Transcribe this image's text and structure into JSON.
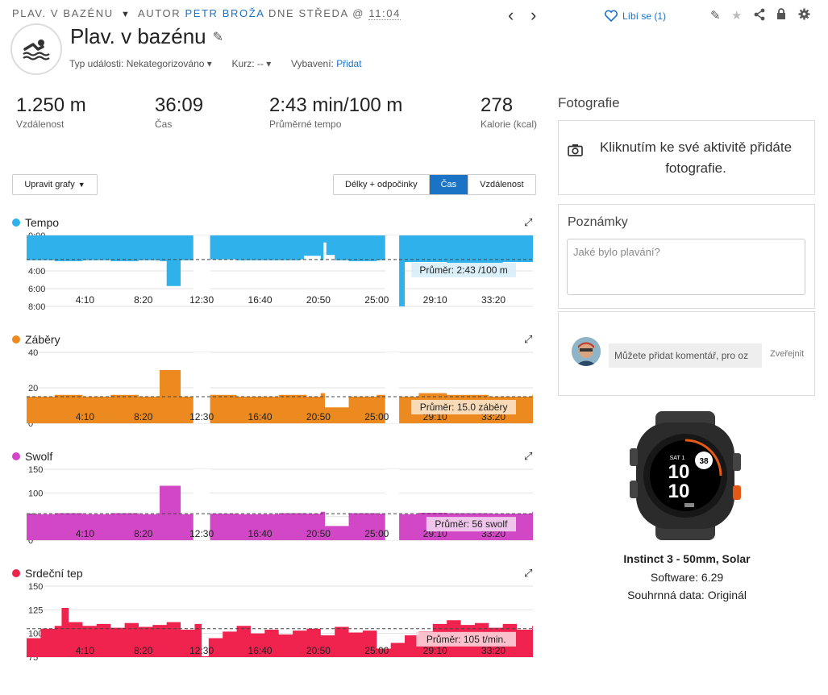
{
  "header": {
    "breadcrumb_activity": "PLAV. V BAZÉNU",
    "breadcrumb_author_prefix": "AUTOR",
    "breadcrumb_author": "PETR BROŽA",
    "breadcrumb_day": "DNE STŘEDA @",
    "breadcrumb_time": "11:04",
    "like_label": "Líbí se (1)",
    "title": "Plav. v bazénu",
    "event_type_label": "Typ události:",
    "event_type_value": "Nekategorizováno",
    "course_label": "Kurz:",
    "course_value": "--",
    "gear_label": "Vybavení:",
    "gear_link": "Přidat"
  },
  "stats": [
    {
      "value": "1.250 m",
      "label": "Vzdálenost"
    },
    {
      "value": "36:09",
      "label": "Čas"
    },
    {
      "value": "2:43 min/100 m",
      "label": "Průměrné tempo"
    },
    {
      "value": "278",
      "label": "Kalorie (kcal)"
    }
  ],
  "controls": {
    "edit_charts": "Upravit grafy",
    "segments": [
      "Délky + odpočinky",
      "Čas",
      "Vzdálenost"
    ],
    "active_segment": "Čas"
  },
  "colors": {
    "tempo": "#2fb2ec",
    "strokes": "#ec8a1f",
    "swolf": "#d147c5",
    "hr": "#f0234e",
    "accent": "#1a73c5"
  },
  "charts": {
    "x_ticks": [
      "4:10",
      "8:20",
      "12:30",
      "16:40",
      "20:50",
      "25:00",
      "29:10",
      "33:20"
    ],
    "tempo": {
      "title": "Tempo",
      "y_ticks": [
        "0:00",
        "2:00",
        "4:00",
        "6:00",
        "8:00"
      ],
      "avg_label": "Průměr: 2:43 /100 m"
    },
    "strokes": {
      "title": "Záběry",
      "y_ticks": [
        "40",
        "20",
        "0"
      ],
      "avg_label": "Průměr: 15.0 záběry"
    },
    "swolf": {
      "title": "Swolf",
      "y_ticks": [
        "150",
        "100",
        "50",
        "0"
      ],
      "avg_label": "Průměr: 56 swolf"
    },
    "hr": {
      "title": "Srdeční tep",
      "y_ticks": [
        "150",
        "125",
        "100",
        "75"
      ],
      "avg_label": "Průměr: 105 t/min."
    }
  },
  "chart_data": [
    {
      "type": "area",
      "title": "Tempo",
      "x_unit": "min",
      "x": [
        0,
        2,
        4,
        6,
        8,
        9.5,
        10,
        11,
        12.3,
        12.6,
        13,
        15,
        18,
        19.5,
        19.8,
        21,
        21.2,
        21.4,
        22,
        23,
        25,
        26.4,
        27,
        30,
        34,
        36.1
      ],
      "y": [
        2.8,
        2.9,
        2.8,
        2.9,
        2.8,
        2.9,
        5.7,
        2.8,
        2.9,
        8.0,
        2.7,
        2.8,
        2.8,
        2.7,
        2.3,
        2.8,
        0.8,
        2.2,
        2.8,
        2.9,
        2.8,
        8.0,
        3.0,
        3.1,
        3.0,
        3.0
      ],
      "gaps": [
        [
          11.9,
          13.1
        ],
        [
          25.6,
          26.6
        ]
      ],
      "average": 2.72,
      "ylim": [
        0,
        8
      ],
      "y_inverted": true
    },
    {
      "type": "area",
      "title": "Záběry",
      "x_unit": "min",
      "x": [
        0,
        2,
        4,
        6,
        8,
        9.5,
        11,
        13,
        15,
        18,
        20,
        21,
        21.3,
        23,
        25,
        26.4,
        28,
        30,
        33,
        36.1
      ],
      "y": [
        15,
        16,
        15,
        16,
        15,
        30,
        15,
        16,
        15,
        16,
        15,
        17,
        9,
        15,
        16,
        15,
        17,
        16,
        15,
        16
      ],
      "gaps": [
        [
          11.9,
          13.1
        ],
        [
          25.6,
          26.6
        ]
      ],
      "average": 15.0,
      "ylim": [
        0,
        40
      ]
    },
    {
      "type": "area",
      "title": "Swolf",
      "x_unit": "min",
      "x": [
        0,
        2,
        4,
        6,
        8,
        9.5,
        11,
        13,
        15,
        18,
        20,
        21,
        21.3,
        23,
        25,
        26.4,
        28,
        30,
        33,
        36.1
      ],
      "y": [
        55,
        57,
        55,
        57,
        55,
        115,
        55,
        56,
        55,
        57,
        56,
        60,
        30,
        57,
        56,
        55,
        58,
        57,
        56,
        60
      ],
      "gaps": [
        [
          11.9,
          13.1
        ],
        [
          25.6,
          26.6
        ]
      ],
      "average": 56,
      "ylim": [
        0,
        150
      ]
    },
    {
      "type": "area",
      "title": "Srdeční tep",
      "x_unit": "min",
      "x": [
        0,
        1,
        2,
        2.5,
        3,
        4,
        5,
        6,
        7,
        8,
        9,
        10,
        11,
        12,
        12.5,
        13,
        14,
        15,
        16,
        17,
        18,
        19,
        20,
        21,
        22,
        23,
        24,
        25,
        26,
        27,
        28,
        29,
        30,
        31,
        32,
        33,
        34,
        35,
        36.1
      ],
      "y": [
        95,
        105,
        108,
        127,
        112,
        108,
        110,
        106,
        111,
        107,
        109,
        112,
        104,
        110,
        76,
        95,
        102,
        108,
        100,
        104,
        99,
        103,
        105,
        98,
        107,
        101,
        103,
        84,
        90,
        98,
        102,
        110,
        114,
        109,
        111,
        106,
        110,
        104,
        108
      ],
      "average": 105,
      "ylim": [
        75,
        150
      ]
    }
  ],
  "right_panel": {
    "photos_title": "Fotografie",
    "photos_text": "Kliknutím ke své aktivitě přidáte fotografie.",
    "notes_title": "Poznámky",
    "notes_placeholder": "Jaké bylo plavání?",
    "comment_placeholder": "Můžete přidat komentář, pro oz",
    "publish_label": "Zveřejnit"
  },
  "device": {
    "name": "Instinct 3 - 50mm, Solar",
    "software": "Software: 6.29",
    "summary": "Souhrnná data: Originál",
    "watch_day": "SAT 1",
    "watch_hour": "10",
    "watch_minute": "10",
    "watch_badge": "38"
  }
}
